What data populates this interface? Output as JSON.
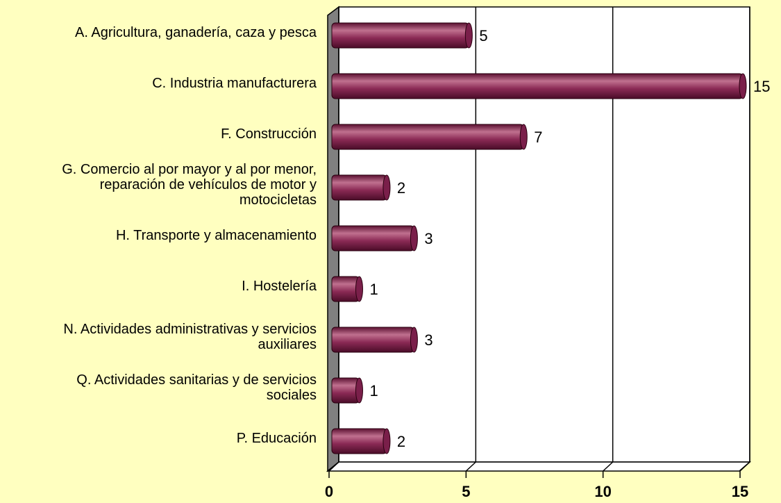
{
  "chart_data": {
    "type": "bar",
    "orientation": "horizontal",
    "categories": [
      "A. Agricultura, ganadería, caza y pesca",
      "C. Industria manufacturera",
      "F. Construcción",
      "G. Comercio al por mayor y al por menor,\nreparación de vehículos de motor y\nmotocicletas",
      "H. Transporte y almacenamiento",
      "I. Hostelería",
      "N. Actividades administrativas y servicios\nauxiliares",
      "Q. Actividades sanitarias y de servicios\nsociales",
      "P. Educación"
    ],
    "values": [
      5,
      15,
      7,
      2,
      3,
      1,
      3,
      1,
      2
    ],
    "color": "#7a1f4a",
    "xlim": [
      0,
      15
    ],
    "xticks": [
      0,
      5,
      10,
      15
    ],
    "grid": true
  }
}
